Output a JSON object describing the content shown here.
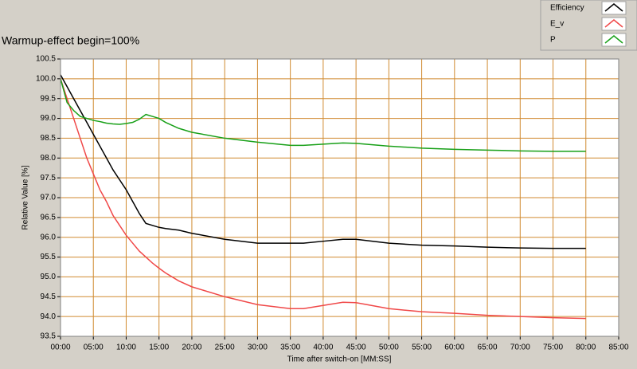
{
  "chart_data": {
    "type": "line",
    "title": "Warmup-effect begin=100%",
    "xlabel": "Time after switch-on [MM:SS]",
    "ylabel": "Relative Value [%]",
    "x": [
      0,
      1,
      2,
      3,
      4,
      5,
      6,
      7,
      8,
      9,
      10,
      11,
      12,
      13,
      14,
      15,
      16,
      18,
      20,
      25,
      30,
      35,
      37,
      40,
      43,
      45,
      50,
      55,
      60,
      65,
      70,
      75,
      80
    ],
    "series": [
      {
        "name": "Efficiency",
        "color": "#000000",
        "values": [
          100.1,
          99.8,
          99.5,
          99.2,
          98.9,
          98.6,
          98.3,
          98.0,
          97.7,
          97.45,
          97.2,
          96.9,
          96.6,
          96.35,
          96.3,
          96.25,
          96.22,
          96.18,
          96.1,
          95.95,
          95.85,
          95.85,
          95.85,
          95.9,
          95.95,
          95.95,
          95.85,
          95.8,
          95.78,
          95.75,
          95.73,
          95.72,
          95.72
        ]
      },
      {
        "name": "E_v",
        "color": "#f04848",
        "values": [
          100.0,
          99.5,
          99.0,
          98.5,
          98.0,
          97.6,
          97.2,
          96.9,
          96.55,
          96.3,
          96.05,
          95.85,
          95.65,
          95.5,
          95.35,
          95.22,
          95.1,
          94.9,
          94.75,
          94.5,
          94.3,
          94.2,
          94.2,
          94.28,
          94.36,
          94.35,
          94.2,
          94.12,
          94.08,
          94.03,
          94.0,
          93.97,
          93.95
        ]
      },
      {
        "name": "P",
        "color": "#18a018",
        "values": [
          100.0,
          99.4,
          99.2,
          99.05,
          99.0,
          98.95,
          98.92,
          98.88,
          98.86,
          98.85,
          98.87,
          98.9,
          98.98,
          99.1,
          99.05,
          99.0,
          98.9,
          98.75,
          98.65,
          98.5,
          98.4,
          98.32,
          98.32,
          98.35,
          98.38,
          98.37,
          98.3,
          98.25,
          98.22,
          98.2,
          98.18,
          98.17,
          98.17
        ]
      }
    ],
    "xlim": [
      0,
      85
    ],
    "xticks": [
      {
        "value": 0,
        "label": "00:00"
      },
      {
        "value": 5,
        "label": "05:00"
      },
      {
        "value": 10,
        "label": "10:00"
      },
      {
        "value": 15,
        "label": "15:00"
      },
      {
        "value": 20,
        "label": "20:00"
      },
      {
        "value": 25,
        "label": "25:00"
      },
      {
        "value": 30,
        "label": "30:00"
      },
      {
        "value": 35,
        "label": "35:00"
      },
      {
        "value": 40,
        "label": "40:00"
      },
      {
        "value": 45,
        "label": "45:00"
      },
      {
        "value": 50,
        "label": "50:00"
      },
      {
        "value": 55,
        "label": "55:00"
      },
      {
        "value": 60,
        "label": "60:00"
      },
      {
        "value": 65,
        "label": "65:00"
      },
      {
        "value": 70,
        "label": "70:00"
      },
      {
        "value": 75,
        "label": "75:00"
      },
      {
        "value": 80,
        "label": "80:00"
      },
      {
        "value": 85,
        "label": "85:00"
      }
    ],
    "ylim": [
      93.5,
      100.5
    ],
    "yticks": [
      93.5,
      {
        "value": 94,
        "label": "94.0"
      },
      94.5,
      {
        "value": 95,
        "label": "95.0"
      },
      95.5,
      {
        "value": 96,
        "label": "96.0"
      },
      96.5,
      {
        "value": 97,
        "label": "97.0"
      },
      97.5,
      {
        "value": 98,
        "label": "98.0"
      },
      98.5,
      {
        "value": 99,
        "label": "99.0"
      },
      99.5,
      {
        "value": 100,
        "label": "100.0"
      },
      100.5
    ],
    "grid": true,
    "grid_color": "#d08a30",
    "legend": "upper right"
  }
}
